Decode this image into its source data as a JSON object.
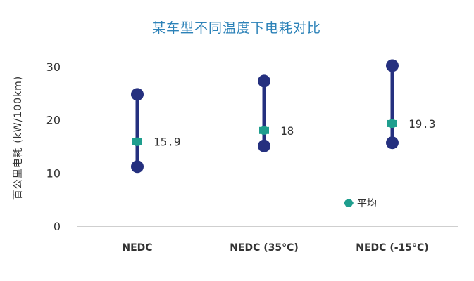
{
  "chart_data": {
    "type": "range-dot",
    "title": "某车型不同温度下电耗对比",
    "xlabel": "",
    "ylabel": "百公里电耗 (kW/100km)",
    "ylim": [
      0,
      30
    ],
    "yticks": [
      0,
      10,
      20,
      30
    ],
    "grid": false,
    "categories": [
      "NEDC",
      "NEDC (35°C)",
      "NEDC (-15°C)"
    ],
    "series": [
      {
        "name": "",
        "values": [
          24.8,
          27.3,
          30.2
        ]
      },
      {
        "name": "",
        "values": [
          11.2,
          15.1,
          15.7
        ]
      },
      {
        "name": "平均",
        "values": [
          15.9,
          18.0,
          19.3
        ]
      }
    ],
    "data_labels": [
      "15.9",
      "18",
      "19.3"
    ],
    "legend": {
      "position": "bottom-right",
      "label": "平均"
    },
    "colors": {
      "range": "#25307f",
      "average": "#1f9e8e",
      "title": "#2c82b8",
      "axis_text": "#333333",
      "axis_line": "#bfbfbf"
    }
  }
}
